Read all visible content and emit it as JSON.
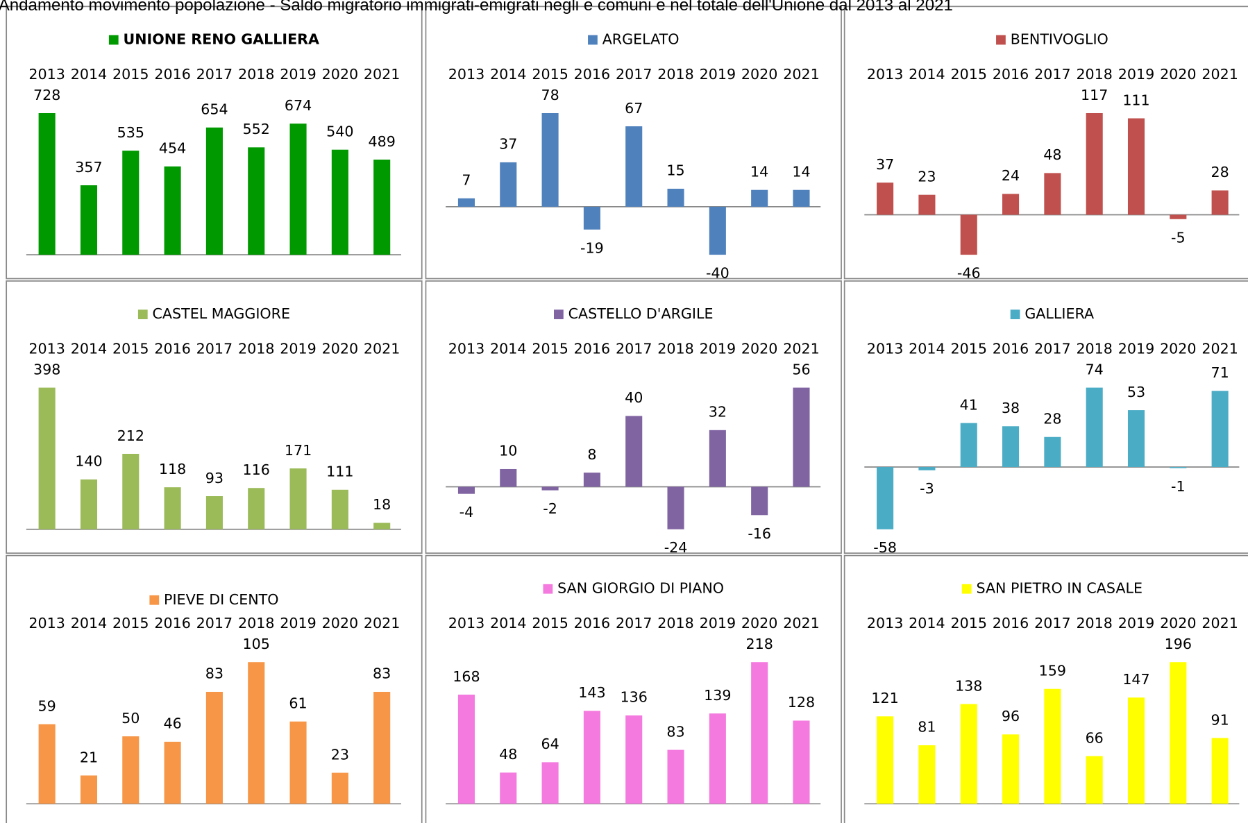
{
  "title": "Andamento movimento popolazione - Saldo migratorio immigrati-emigrati negli e comuni e nel totale dell'Unione dal 2013 al 2021",
  "chart_data": [
    {
      "type": "bar",
      "categories": [
        "2013",
        "2014",
        "2015",
        "2016",
        "2017",
        "2018",
        "2019",
        "2020",
        "2021"
      ],
      "series": [
        {
          "name": "UNIONE RENO GALLIERA",
          "color": "#009900",
          "values": [
            728,
            357,
            535,
            454,
            654,
            552,
            674,
            540,
            489
          ]
        }
      ]
    },
    {
      "type": "bar",
      "categories": [
        "2013",
        "2014",
        "2015",
        "2016",
        "2017",
        "2018",
        "2019",
        "2020",
        "2021"
      ],
      "series": [
        {
          "name": "ARGELATO",
          "color": "#4f81bd",
          "values": [
            7,
            37,
            78,
            -19,
            67,
            15,
            -40,
            14,
            14
          ]
        }
      ]
    },
    {
      "type": "bar",
      "categories": [
        "2013",
        "2014",
        "2015",
        "2016",
        "2017",
        "2018",
        "2019",
        "2020",
        "2021"
      ],
      "series": [
        {
          "name": "BENTIVOGLIO",
          "color": "#c0504d",
          "values": [
            37,
            23,
            -46,
            24,
            48,
            117,
            111,
            -5,
            28
          ]
        }
      ]
    },
    {
      "type": "bar",
      "categories": [
        "2013",
        "2014",
        "2015",
        "2016",
        "2017",
        "2018",
        "2019",
        "2020",
        "2021"
      ],
      "series": [
        {
          "name": "CASTEL MAGGIORE",
          "color": "#9bbb59",
          "values": [
            398,
            140,
            212,
            118,
            93,
            116,
            171,
            111,
            18
          ]
        }
      ]
    },
    {
      "type": "bar",
      "categories": [
        "2013",
        "2014",
        "2015",
        "2016",
        "2017",
        "2018",
        "2019",
        "2020",
        "2021"
      ],
      "series": [
        {
          "name": "CASTELLO D'ARGILE",
          "color": "#8064a2",
          "values": [
            -4,
            10,
            -2,
            8,
            40,
            -24,
            32,
            -16,
            56
          ]
        }
      ]
    },
    {
      "type": "bar",
      "categories": [
        "2013",
        "2014",
        "2015",
        "2016",
        "2017",
        "2018",
        "2019",
        "2020",
        "2021"
      ],
      "series": [
        {
          "name": "GALLIERA",
          "color": "#4bacc6",
          "values": [
            -58,
            -3,
            41,
            38,
            28,
            74,
            53,
            -1,
            71
          ]
        }
      ]
    },
    {
      "type": "bar",
      "categories": [
        "2013",
        "2014",
        "2015",
        "2016",
        "2017",
        "2018",
        "2019",
        "2020",
        "2021"
      ],
      "series": [
        {
          "name": "PIEVE DI CENTO",
          "color": "#f79646",
          "values": [
            59,
            21,
            50,
            46,
            83,
            105,
            61,
            23,
            83
          ]
        }
      ]
    },
    {
      "type": "bar",
      "categories": [
        "2013",
        "2014",
        "2015",
        "2016",
        "2017",
        "2018",
        "2019",
        "2020",
        "2021"
      ],
      "series": [
        {
          "name": "SAN GIORGIO DI PIANO",
          "color": "#f47adf",
          "values": [
            168,
            48,
            64,
            143,
            136,
            83,
            139,
            218,
            128
          ]
        }
      ]
    },
    {
      "type": "bar",
      "categories": [
        "2013",
        "2014",
        "2015",
        "2016",
        "2017",
        "2018",
        "2019",
        "2020",
        "2021"
      ],
      "series": [
        {
          "name": "SAN PIETRO IN CASALE",
          "color": "#ffff00",
          "values": [
            121,
            81,
            138,
            96,
            159,
            66,
            147,
            196,
            91
          ]
        }
      ]
    }
  ]
}
